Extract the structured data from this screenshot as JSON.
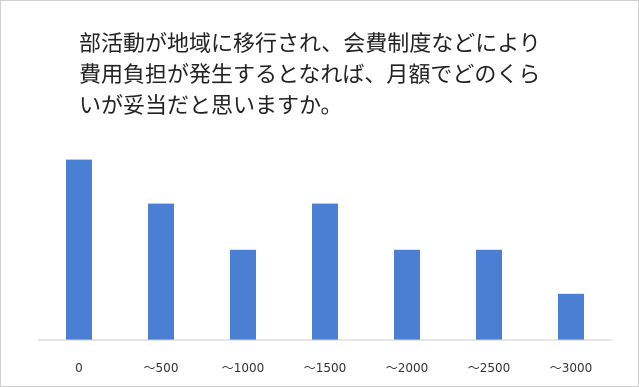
{
  "chart_data": {
    "type": "bar",
    "title_lines": [
      "部活動が地域に移行され、会費制度などにより",
      "費用負担が発生するとなれば、月額でどのくら",
      "いが妥当だと思いますか。"
    ],
    "categories": [
      "0",
      "～500",
      "～1000",
      "～1500",
      "～2000",
      "～2500",
      "～3000"
    ],
    "values": [
      8.2,
      6.2,
      4.1,
      6.2,
      4.1,
      4.1,
      2.1
    ],
    "ylim": [
      0,
      10
    ],
    "grid": false,
    "legend": "none",
    "xlabel": "",
    "ylabel": "",
    "colors": {
      "bar": "#4a7fd4",
      "axis": "#cccccc"
    }
  }
}
